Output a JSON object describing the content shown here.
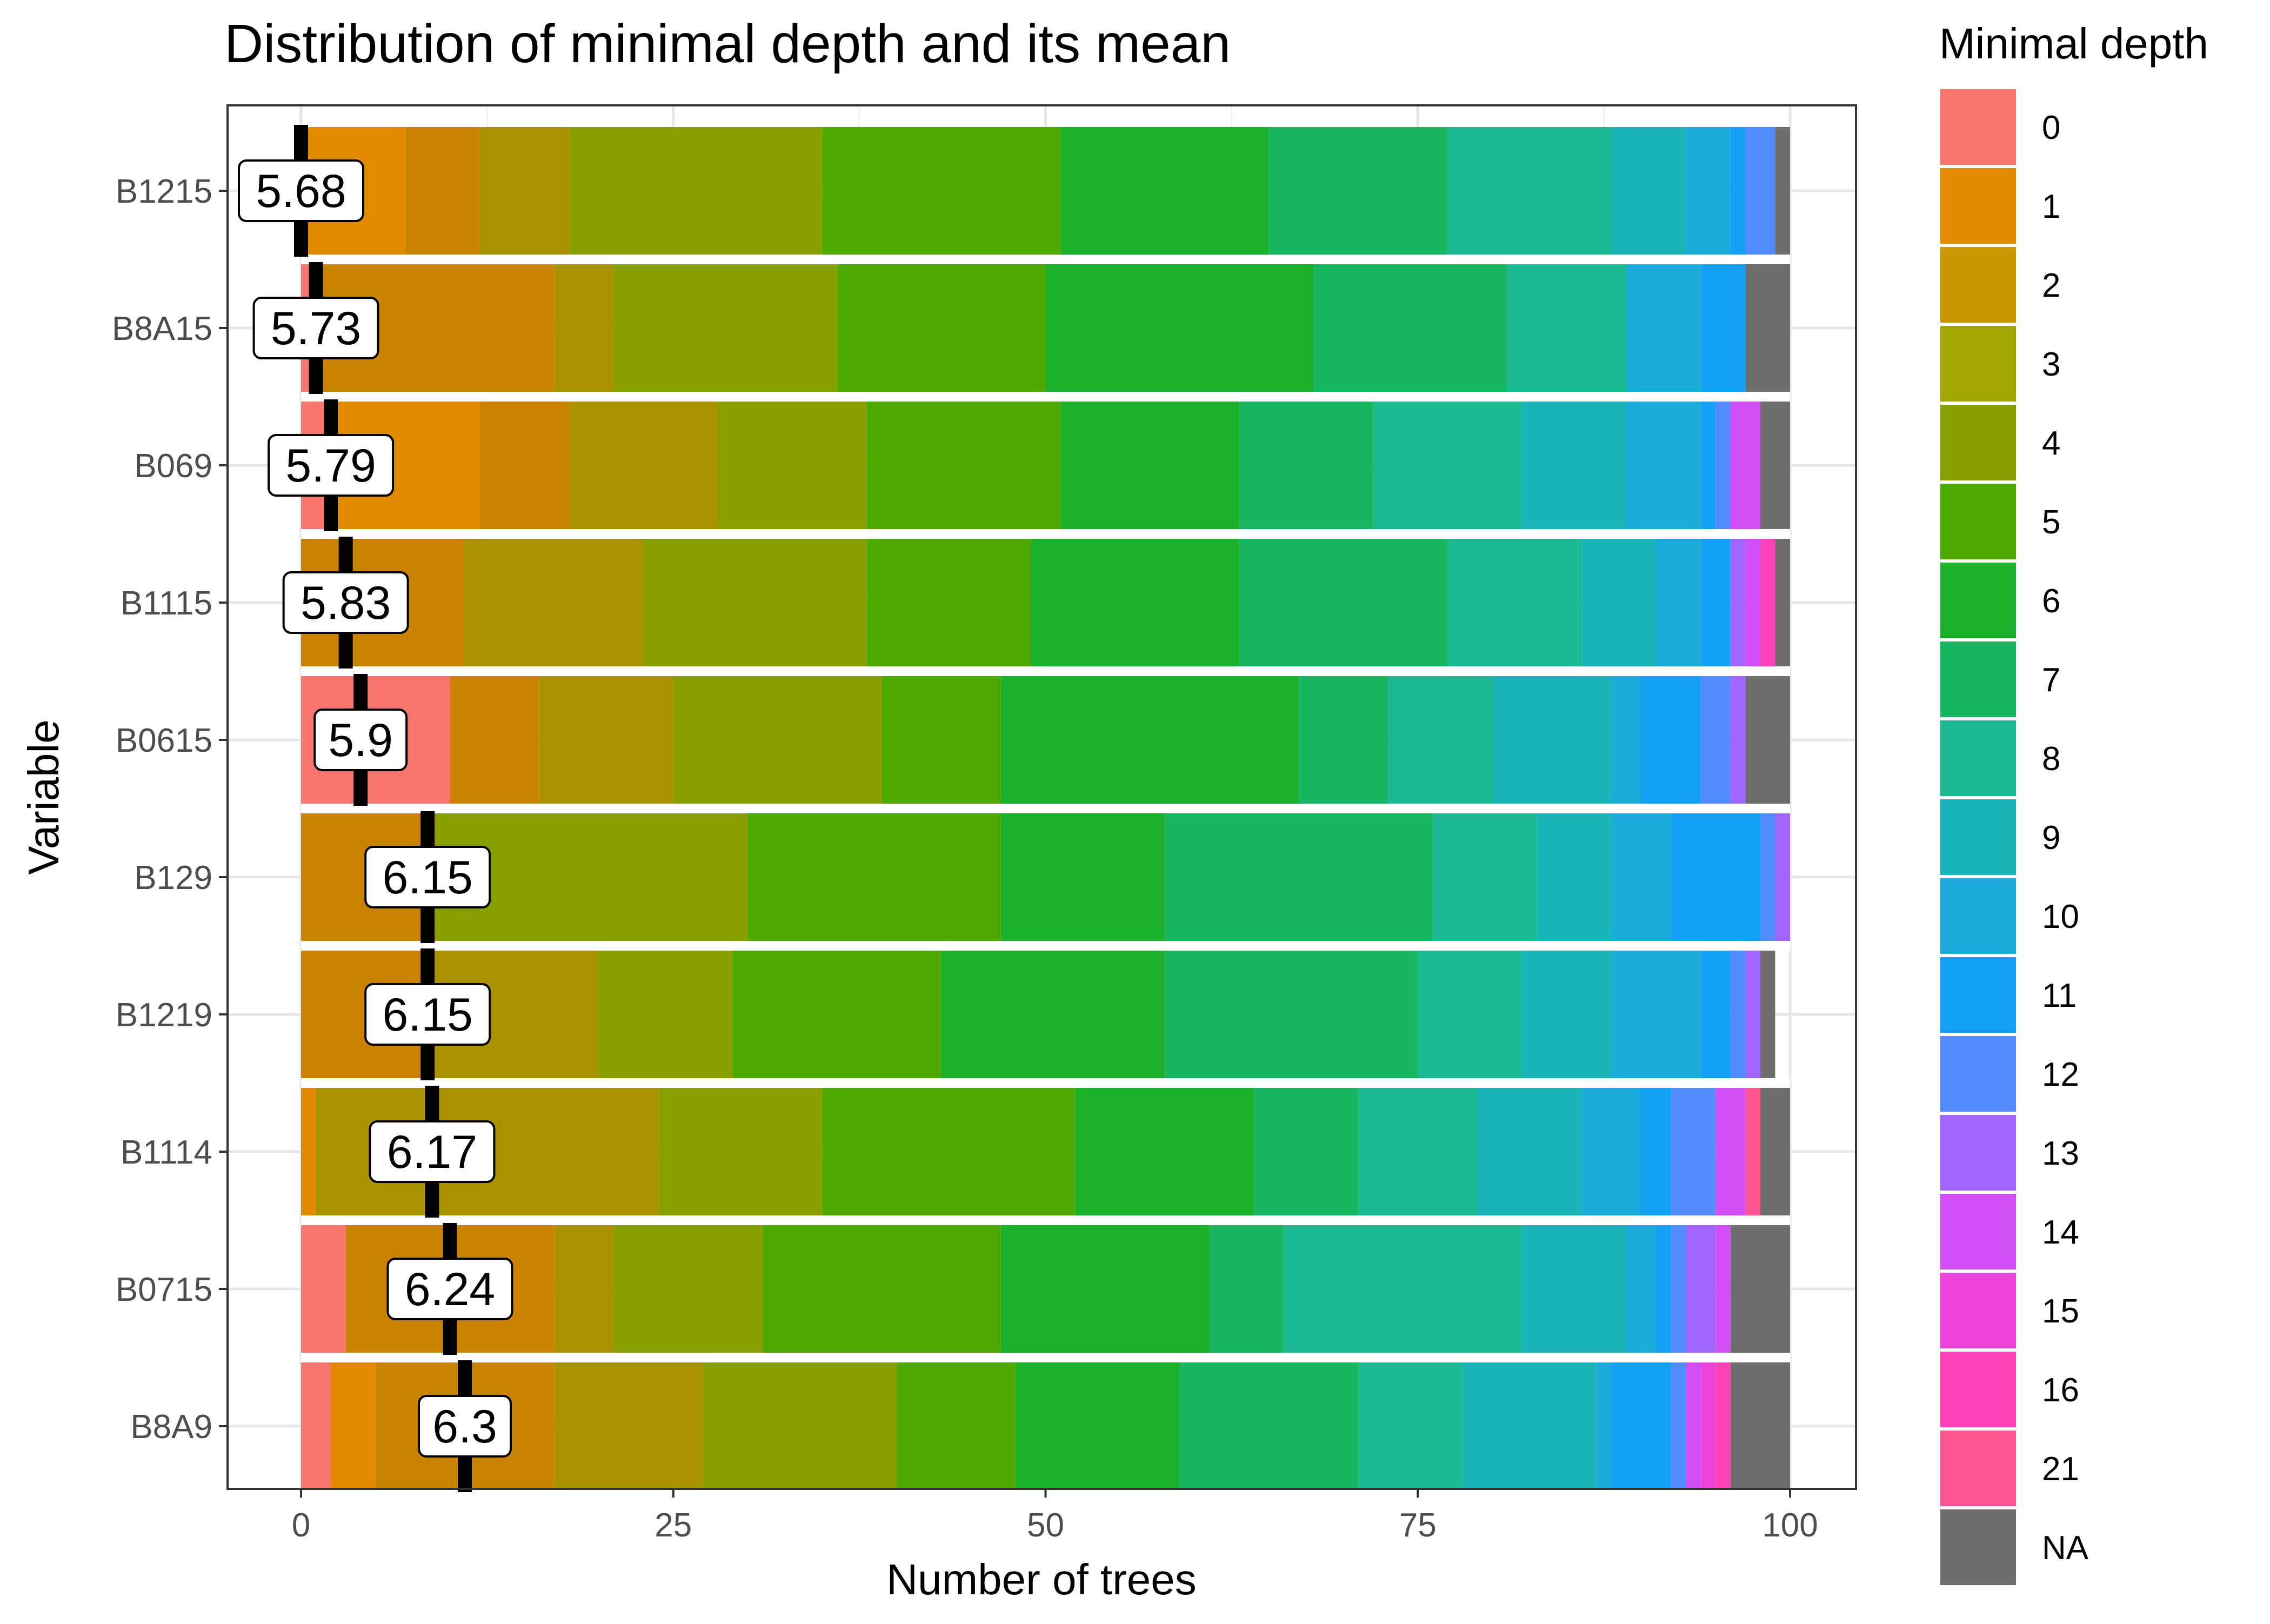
{
  "chart_data": {
    "type": "bar",
    "orientation": "horizontal",
    "stacked": true,
    "title": "Distribution of minimal depth and its mean",
    "xlabel": "Number of trees",
    "ylabel": "Variable",
    "xlim": [
      0,
      100
    ],
    "x_ticks": [
      "0",
      "25",
      "50",
      "75",
      "100"
    ],
    "x_tick_values": [
      0,
      25,
      50,
      75,
      100
    ],
    "grid": true,
    "legend_position": "right",
    "legend_title": "Minimal depth",
    "categories": [
      "B1215",
      "B8A15",
      "B069",
      "B1115",
      "B0615",
      "B129",
      "B1219",
      "B1114",
      "B0715",
      "B8A9"
    ],
    "depth_levels": [
      {
        "label": "0",
        "color": "#F8766D"
      },
      {
        "label": "1",
        "color": "#E58700"
      },
      {
        "label": "2",
        "color": "#C99800"
      },
      {
        "label": "3",
        "color": "#A3A500"
      },
      {
        "label": "4",
        "color": "#6BB100"
      },
      {
        "label": "5",
        "color": "#00BA38"
      },
      {
        "label": "6",
        "color": "#00BF7D"
      },
      {
        "label": "7",
        "color": "#00C0AF"
      },
      {
        "label": "8",
        "color": "#00BCD8"
      },
      {
        "label": "9",
        "color": "#00B0F6"
      },
      {
        "label": "10",
        "color": "#619CFF"
      },
      {
        "label": "11",
        "color": "#B983FF"
      },
      {
        "label": "12",
        "color": "#E76BF3"
      },
      {
        "label": "13",
        "color": "#FD61D1"
      },
      {
        "label": "14",
        "color": "#FF67A4"
      },
      {
        "label": "15",
        "color": "#FF5CC8"
      },
      {
        "label": "16",
        "color": "#FF4FB0"
      },
      {
        "label": "21",
        "color": "#FF5C8A"
      },
      {
        "label": "NA",
        "color": "#6E6E6E"
      }
    ],
    "legend_colors": [
      "#F8766D",
      "#E18A00",
      "#C99800",
      "#A3A500",
      "#87A000",
      "#4FA800",
      "#1BAF2A",
      "#18B562",
      "#1BB892",
      "#18B4B8",
      "#1BAAD9",
      "#14A0F5",
      "#528BFF",
      "#A066FF",
      "#D14FF5",
      "#EE44DD",
      "#FF42B8",
      "#FF5590",
      "#6E6E6E"
    ],
    "series": [
      {
        "name": "0",
        "color": "#F8766D",
        "values": [
          0,
          0.5,
          2,
          0,
          10,
          0,
          0,
          0,
          3,
          2
        ]
      },
      {
        "name": "1",
        "color": "#E18A00",
        "values": [
          7,
          0,
          10,
          0,
          0,
          0,
          0,
          1,
          0,
          3
        ]
      },
      {
        "name": "2",
        "color": "#C98300",
        "values": [
          5,
          16.5,
          6,
          11,
          6,
          9,
          9,
          0,
          14,
          12
        ]
      },
      {
        "name": "3",
        "color": "#A89200",
        "values": [
          6,
          4,
          10,
          12,
          9,
          0,
          11,
          23,
          4,
          10
        ]
      },
      {
        "name": "4",
        "color": "#87A000",
        "values": [
          17,
          15,
          10,
          15,
          14,
          21,
          9,
          11,
          10,
          13
        ]
      },
      {
        "name": "5",
        "color": "#4FA800",
        "values": [
          16,
          14,
          13,
          11,
          8,
          17,
          14,
          17,
          16,
          8
        ]
      },
      {
        "name": "6",
        "color": "#1BAF2A",
        "values": [
          14,
          18,
          12,
          14,
          20,
          11,
          15,
          12,
          14,
          11
        ]
      },
      {
        "name": "7",
        "color": "#18B562",
        "values": [
          12,
          13,
          9,
          14,
          6,
          18,
          17,
          7,
          5,
          12
        ]
      },
      {
        "name": "8",
        "color": "#1BB892",
        "values": [
          11,
          8,
          10,
          9,
          7,
          7,
          7,
          8,
          16,
          7
        ]
      },
      {
        "name": "9",
        "color": "#18B4B8",
        "values": [
          5,
          0,
          7,
          5,
          8,
          5,
          6,
          7,
          7,
          9
        ]
      },
      {
        "name": "10",
        "color": "#1BAAD9",
        "values": [
          3,
          5,
          5,
          3,
          2,
          4,
          6,
          4,
          2,
          1
        ]
      },
      {
        "name": "11",
        "color": "#14A0F5",
        "values": [
          1,
          3,
          1,
          2,
          4,
          6,
          2,
          2,
          1,
          4
        ]
      },
      {
        "name": "12",
        "color": "#528BFF",
        "values": [
          2,
          0,
          1,
          0,
          2,
          1,
          1,
          3,
          1,
          1
        ]
      },
      {
        "name": "13",
        "color": "#A066FF",
        "values": [
          0,
          0,
          0,
          1,
          1,
          1,
          1,
          0,
          2,
          0
        ]
      },
      {
        "name": "14",
        "color": "#D14FF5",
        "values": [
          0,
          0,
          2,
          1,
          0,
          0,
          0,
          2,
          1,
          1
        ]
      },
      {
        "name": "15",
        "color": "#EE44DD",
        "values": [
          0,
          0,
          0,
          0,
          0,
          0,
          0,
          0,
          0,
          1
        ]
      },
      {
        "name": "16",
        "color": "#FF42B8",
        "values": [
          0,
          0,
          0,
          1,
          0,
          0,
          0,
          0,
          0,
          1
        ]
      },
      {
        "name": "21",
        "color": "#FF5590",
        "values": [
          0,
          0,
          0,
          0,
          0,
          0,
          0,
          1,
          0,
          0
        ]
      },
      {
        "name": "NA",
        "color": "#6E6E6E",
        "values": [
          1,
          3,
          2,
          1,
          3,
          0,
          1,
          2,
          4,
          4
        ]
      }
    ],
    "means": [
      {
        "label": "5.68",
        "x": 0
      },
      {
        "label": "5.73",
        "x": 1
      },
      {
        "label": "5.79",
        "x": 2
      },
      {
        "label": "5.83",
        "x": 3
      },
      {
        "label": "5.9",
        "x": 4
      },
      {
        "label": "6.15",
        "x": 8.5
      },
      {
        "label": "6.15",
        "x": 8.5
      },
      {
        "label": "6.17",
        "x": 8.8
      },
      {
        "label": "6.24",
        "x": 10
      },
      {
        "label": "6.3",
        "x": 11
      }
    ]
  }
}
